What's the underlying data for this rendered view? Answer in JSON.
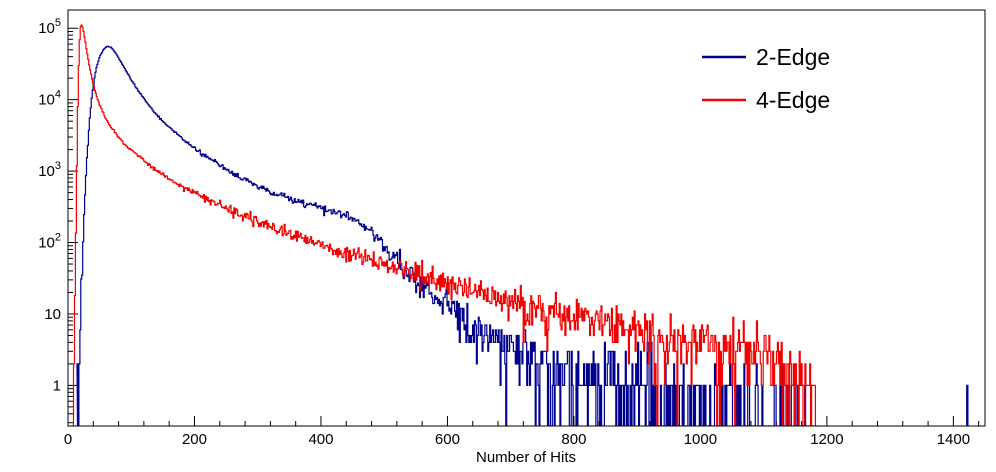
{
  "chart_data": {
    "type": "line",
    "subtype": "histogram-step",
    "title": "",
    "xlabel": "Number of Hits",
    "ylabel": "",
    "xlim": [
      0,
      1450
    ],
    "ylim": [
      0.27,
      180000
    ],
    "y_scale": "log",
    "grid": false,
    "x_major_ticks": [
      0,
      200,
      400,
      600,
      800,
      1000,
      1200,
      1400
    ],
    "x_minor_step": 40,
    "y_major_ticks": [
      {
        "value": 1,
        "base": "1",
        "exp": ""
      },
      {
        "value": 10,
        "base": "10",
        "exp": ""
      },
      {
        "value": 100,
        "base": "10",
        "exp": "2"
      },
      {
        "value": 1000,
        "base": "10",
        "exp": "3"
      },
      {
        "value": 10000,
        "base": "10",
        "exp": "4"
      },
      {
        "value": 100000,
        "base": "10",
        "exp": "5"
      }
    ],
    "legend": {
      "position": "top-right",
      "entries": [
        {
          "label": "2-Edge",
          "color": "#00008f"
        },
        {
          "label": "4-Edge",
          "color": "#f40000"
        }
      ]
    },
    "noise_model": "poisson",
    "series": [
      {
        "name": "2-Edge",
        "color": "#00008f",
        "bin_width": 1.5,
        "seed": 20240117,
        "anchors": [
          [
            15,
            0.6
          ],
          [
            18,
            4
          ],
          [
            22,
            40
          ],
          [
            26,
            300
          ],
          [
            30,
            1500
          ],
          [
            34,
            5000
          ],
          [
            38,
            12000
          ],
          [
            44,
            26000
          ],
          [
            50,
            40000
          ],
          [
            56,
            50000
          ],
          [
            62,
            56000
          ],
          [
            68,
            54000
          ],
          [
            74,
            47000
          ],
          [
            82,
            36000
          ],
          [
            90,
            27000
          ],
          [
            100,
            19000
          ],
          [
            112,
            13000
          ],
          [
            126,
            8800
          ],
          [
            140,
            6200
          ],
          [
            156,
            4400
          ],
          [
            172,
            3300
          ],
          [
            190,
            2450
          ],
          [
            210,
            1800
          ],
          [
            230,
            1380
          ],
          [
            250,
            1060
          ],
          [
            270,
            840
          ],
          [
            290,
            680
          ],
          [
            310,
            560
          ],
          [
            330,
            470
          ],
          [
            350,
            405
          ],
          [
            370,
            355
          ],
          [
            390,
            320
          ],
          [
            410,
            285
          ],
          [
            430,
            250
          ],
          [
            448,
            218
          ],
          [
            462,
            190
          ],
          [
            475,
            158
          ],
          [
            488,
            122
          ],
          [
            500,
            92
          ],
          [
            512,
            68
          ],
          [
            525,
            50
          ],
          [
            538,
            38
          ],
          [
            552,
            29
          ],
          [
            568,
            22
          ],
          [
            584,
            17
          ],
          [
            600,
            13
          ],
          [
            620,
            9.5
          ],
          [
            640,
            6.8
          ],
          [
            665,
            4.8
          ],
          [
            690,
            3.6
          ],
          [
            715,
            2.9
          ],
          [
            745,
            2.3
          ],
          [
            775,
            1.9
          ],
          [
            810,
            1.55
          ],
          [
            850,
            1.2
          ],
          [
            895,
            0.9
          ],
          [
            945,
            0.65
          ],
          [
            1000,
            0.45
          ],
          [
            1060,
            0.33
          ],
          [
            1120,
            0.27
          ],
          [
            1180,
            0.22
          ]
        ],
        "extra_spikes": [
          [
            1422,
            1
          ]
        ]
      },
      {
        "name": "4-Edge",
        "color": "#f40000",
        "bin_width": 1.5,
        "seed": 90210,
        "anchors": [
          [
            8,
            0.4
          ],
          [
            10,
            3
          ],
          [
            12,
            60
          ],
          [
            14,
            1200
          ],
          [
            16,
            15000
          ],
          [
            18,
            60000
          ],
          [
            20,
            105000
          ],
          [
            22,
            112000
          ],
          [
            24,
            95000
          ],
          [
            27,
            68000
          ],
          [
            30,
            46000
          ],
          [
            34,
            29000
          ],
          [
            38,
            19500
          ],
          [
            43,
            13200
          ],
          [
            48,
            9500
          ],
          [
            54,
            7000
          ],
          [
            60,
            5400
          ],
          [
            68,
            4100
          ],
          [
            76,
            3300
          ],
          [
            85,
            2650
          ],
          [
            95,
            2150
          ],
          [
            105,
            1800
          ],
          [
            118,
            1450
          ],
          [
            132,
            1150
          ],
          [
            148,
            920
          ],
          [
            165,
            740
          ],
          [
            182,
            610
          ],
          [
            200,
            500
          ],
          [
            220,
            408
          ],
          [
            240,
            336
          ],
          [
            260,
            280
          ],
          [
            280,
            234
          ],
          [
            300,
            196
          ],
          [
            320,
            166
          ],
          [
            340,
            142
          ],
          [
            360,
            122
          ],
          [
            380,
            106
          ],
          [
            400,
            92
          ],
          [
            425,
            77
          ],
          [
            450,
            66
          ],
          [
            475,
            57
          ],
          [
            500,
            49
          ],
          [
            530,
            41
          ],
          [
            560,
            34
          ],
          [
            590,
            29
          ],
          [
            620,
            24
          ],
          [
            650,
            20
          ],
          [
            680,
            17
          ],
          [
            710,
            14.5
          ],
          [
            740,
            12.5
          ],
          [
            775,
            10.5
          ],
          [
            810,
            9
          ],
          [
            850,
            7.6
          ],
          [
            890,
            6.4
          ],
          [
            930,
            5.4
          ],
          [
            970,
            4.6
          ],
          [
            1010,
            3.9
          ],
          [
            1050,
            3.3
          ],
          [
            1090,
            2.7
          ],
          [
            1125,
            2.1
          ],
          [
            1155,
            1.5
          ],
          [
            1178,
            0.9
          ],
          [
            1188,
            0.4
          ]
        ],
        "extra_spikes": []
      }
    ]
  }
}
